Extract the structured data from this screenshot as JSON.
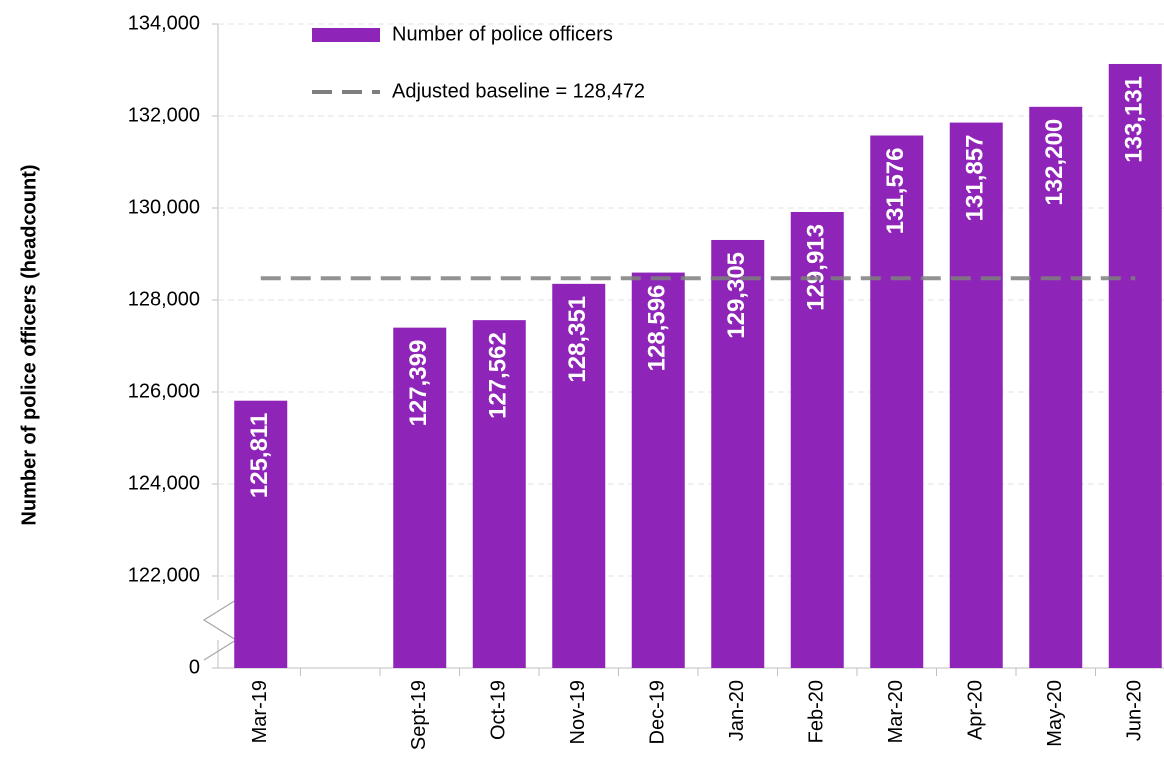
{
  "chart_data": {
    "type": "bar",
    "y_label": "Number of police officers (headcount)",
    "categories": [
      "Mar-19",
      null,
      "Sept-19",
      "Oct-19",
      "Nov-19",
      "Dec-19",
      "Jan-20",
      "Feb-20",
      "Mar-20",
      "Apr-20",
      "May-20",
      "Jun-20"
    ],
    "series": [
      {
        "name": "Number of police officers",
        "color": "#8e24b8",
        "values": [
          125811,
          null,
          127399,
          127562,
          128351,
          128596,
          129305,
          129913,
          131576,
          131857,
          132200,
          133131
        ],
        "value_labels": [
          "125,811",
          null,
          "127,399",
          "127,562",
          "128,351",
          "128,596",
          "129,305",
          "129,913",
          "131,576",
          "131,857",
          "132,200",
          "133,131"
        ]
      }
    ],
    "baseline": {
      "name": "Adjusted baseline = 128,472",
      "value": 128472,
      "color": "#7f7f7f",
      "style": "dashed"
    },
    "ylim": [
      0,
      134000
    ],
    "axis_break": [
      0,
      120000
    ],
    "yticks": [
      0,
      {
        "value": 122000,
        "label": "122,000"
      },
      {
        "value": 124000,
        "label": "124,000"
      },
      {
        "value": 126000,
        "label": "126,000"
      },
      {
        "value": 128000,
        "label": "128,000"
      },
      {
        "value": 130000,
        "label": "130,000"
      },
      {
        "value": 132000,
        "label": "132,000"
      },
      {
        "value": 134000,
        "label": "134,000"
      }
    ],
    "grid": true,
    "legend": "top"
  }
}
